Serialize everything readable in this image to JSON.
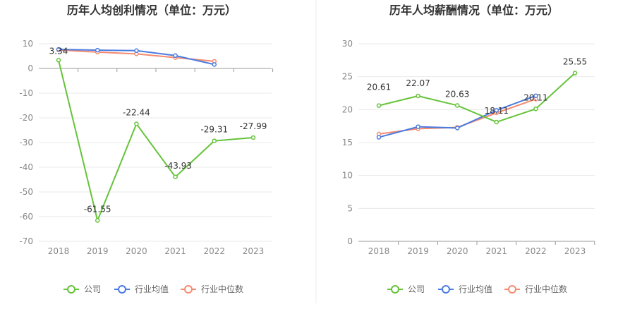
{
  "charts": [
    {
      "title": "历年人均创利情况（单位：万元）",
      "ylim": [
        -70,
        10
      ],
      "yticks": [
        10,
        0,
        -10,
        -20,
        -30,
        -40,
        -50,
        -60,
        -70
      ]
    },
    {
      "title": "历年人均薪酬情况（单位：万元）",
      "ylim": [
        0,
        30
      ],
      "yticks": [
        30,
        25,
        20,
        15,
        10,
        5,
        0
      ]
    }
  ],
  "legend": {
    "items": [
      {
        "label": "公司",
        "color": "#66c33a"
      },
      {
        "label": "行业均值",
        "color": "#4a7be0"
      },
      {
        "label": "行业中位数",
        "color": "#f58b6f"
      }
    ]
  },
  "chart_data": [
    {
      "type": "line",
      "title": "历年人均创利情况（单位：万元）",
      "categories": [
        "2018",
        "2019",
        "2020",
        "2021",
        "2022",
        "2023"
      ],
      "ylim": [
        -70,
        10
      ],
      "series": [
        {
          "name": "公司",
          "color": "#66c33a",
          "values": [
            3.34,
            -61.55,
            -22.44,
            -43.93,
            -29.31,
            -27.99
          ],
          "labels": [
            "3.34",
            "-61.55",
            "-22.44",
            "-43.93",
            "-29.31",
            "-27.99"
          ]
        },
        {
          "name": "行业均值",
          "color": "#4a7be0",
          "values": [
            7.7,
            7.4,
            7.2,
            5.2,
            1.6,
            null
          ]
        },
        {
          "name": "行业中位数",
          "color": "#f58b6f",
          "values": [
            7.5,
            6.6,
            5.9,
            4.4,
            2.9,
            null
          ]
        }
      ],
      "grid": true,
      "legend": "bottom"
    },
    {
      "type": "line",
      "title": "历年人均薪酬情况（单位：万元）",
      "categories": [
        "2018",
        "2019",
        "2020",
        "2021",
        "2022",
        "2023"
      ],
      "ylim": [
        0,
        30
      ],
      "series": [
        {
          "name": "公司",
          "color": "#66c33a",
          "values": [
            20.61,
            22.07,
            20.63,
            18.11,
            20.11,
            25.55
          ],
          "labels": [
            "20.61",
            "22.07",
            "20.63",
            "18.11",
            "20.11",
            "25.55"
          ]
        },
        {
          "name": "行业均值",
          "color": "#4a7be0",
          "values": [
            15.8,
            17.4,
            17.2,
            19.9,
            22.1,
            null
          ]
        },
        {
          "name": "行业中位数",
          "color": "#f58b6f",
          "values": [
            16.3,
            17.1,
            17.3,
            19.5,
            21.6,
            null
          ]
        }
      ],
      "grid": true,
      "legend": "bottom"
    }
  ]
}
